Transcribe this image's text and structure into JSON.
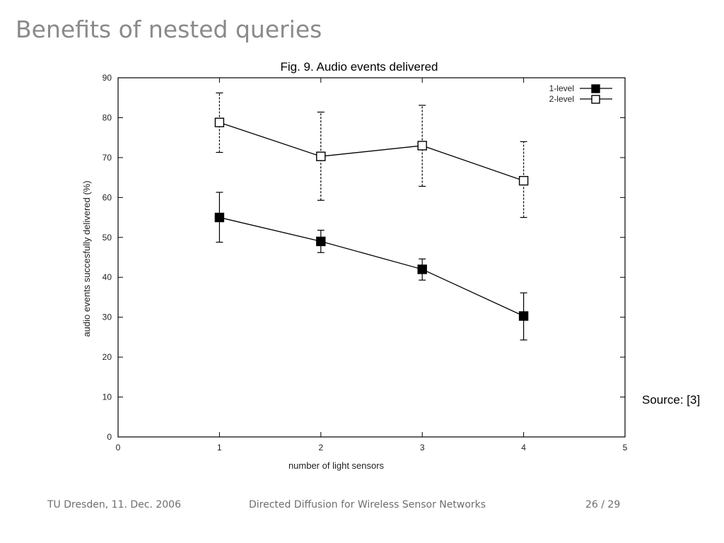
{
  "slide": {
    "title": "Benefits of nested queries",
    "source_note": "Source: [3]"
  },
  "footer": {
    "left": "TU Dresden, 11. Dec. 2006",
    "center": "Directed Diffusion for Wireless Sensor Networks",
    "page": "26 / 29"
  },
  "chart_data": {
    "type": "line",
    "title": "Fig. 9. Audio events delivered",
    "xlabel": "number of light sensors",
    "ylabel": "audio events succesfully delivered (%)",
    "xlim": [
      0,
      5
    ],
    "ylim": [
      0,
      90
    ],
    "x_ticks": [
      0,
      1,
      2,
      3,
      4,
      5
    ],
    "y_ticks": [
      0,
      10,
      20,
      30,
      40,
      50,
      60,
      70,
      80,
      90
    ],
    "grid": false,
    "legend_position": "top-right",
    "series": [
      {
        "name": "1-level",
        "marker": "filled-square",
        "x": [
          1,
          2,
          3,
          4
        ],
        "y": [
          55,
          49,
          42,
          30.3
        ],
        "err_low": [
          48.8,
          46.2,
          39.3,
          24.3
        ],
        "err_high": [
          61.3,
          51.8,
          44.6,
          36.1
        ],
        "err_style": "solid"
      },
      {
        "name": "2-level",
        "marker": "open-square",
        "x": [
          1,
          2,
          3,
          4
        ],
        "y": [
          78.8,
          70.3,
          73,
          64.2
        ],
        "err_low": [
          71.3,
          59.3,
          62.8,
          55
        ],
        "err_high": [
          86.2,
          81.4,
          83.1,
          74
        ],
        "err_style": "dashed"
      }
    ]
  }
}
